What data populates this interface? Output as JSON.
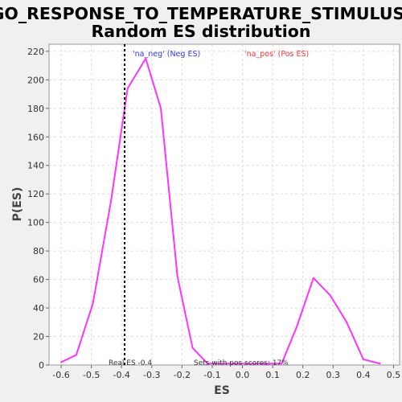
{
  "chart_data": {
    "type": "line",
    "title": "GO_RESPONSE_TO_TEMPERATURE_STIMULUS:",
    "subtitle": "Random ES distribution",
    "xlabel": "ES",
    "ylabel": "P(ES)",
    "xlim": [
      -0.64,
      0.52
    ],
    "ylim": [
      0,
      225
    ],
    "xticks": [
      -0.6,
      -0.5,
      -0.4,
      -0.3,
      -0.2,
      -0.1,
      0.0,
      0.1,
      0.2,
      0.3,
      0.4,
      0.5
    ],
    "xtick_labels": [
      "-0.6",
      "-0.5",
      "-0.4",
      "-0.3",
      "-0.2",
      "-0.1",
      "0.0",
      "0.1",
      "0.2",
      "0.3",
      "0.4",
      "0.5"
    ],
    "yticks": [
      0,
      20,
      40,
      60,
      80,
      100,
      120,
      140,
      160,
      180,
      200,
      220
    ],
    "ytick_labels": [
      "0",
      "20",
      "40",
      "60",
      "80",
      "100",
      "120",
      "140",
      "160",
      "180",
      "200",
      "220"
    ],
    "grid": true,
    "series": [
      {
        "name": "Random ES distribution",
        "color": "#ff33ff",
        "x": [
          -0.6,
          -0.55,
          -0.495,
          -0.435,
          -0.38,
          -0.32,
          -0.27,
          -0.215,
          -0.165,
          -0.115,
          0.13,
          0.18,
          0.235,
          0.29,
          0.345,
          0.4,
          0.455
        ],
        "y": [
          2,
          7,
          43,
          115,
          194,
          215,
          180,
          62,
          12,
          1,
          1,
          27,
          61,
          49,
          30,
          4,
          1
        ]
      }
    ],
    "real_es": -0.39,
    "legend": [
      {
        "label": "'na_neg' (Neg ES)",
        "color": "#3333ff"
      },
      {
        "label": "'na_pos' (Pos ES)",
        "color": "#ff3333"
      }
    ],
    "annotations": {
      "real_es_label": "Real ES -0.4",
      "sets_label": "Sets with pos scores: 17%"
    }
  }
}
